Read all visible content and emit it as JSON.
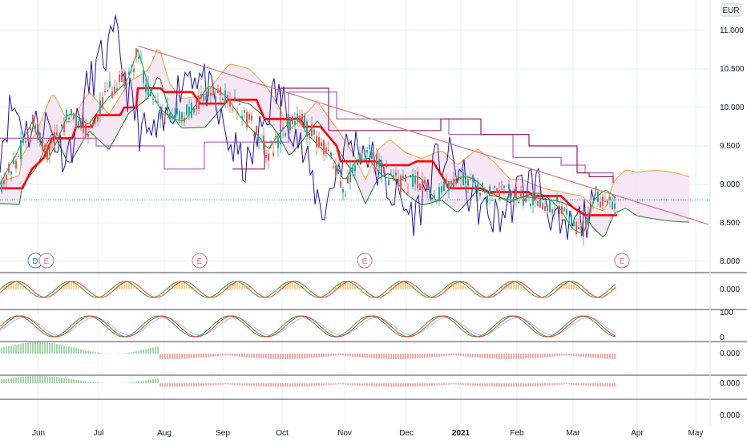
{
  "chart_data": {
    "type": "candlestick",
    "currency_label": "EUR",
    "colors": {
      "candle_up": "#26a69a",
      "candle_down": "#ef5350",
      "kijun": "#ff0000",
      "tenkan": "#1d0fb0",
      "chikou": "#17a317",
      "span_a": "#f7a023",
      "span_b": "#1f7a1f",
      "trendline": "#cf7777",
      "cloud_fill": "#f3e3f5",
      "purple_level": "#b060c0",
      "maroon_level": "#9c1c5c",
      "earnings_badge": "#e06a7f",
      "earnings_badge_blue": "#3d7bd9"
    },
    "price_axis": {
      "ticks": [
        "11.000",
        "10.500",
        "10.000",
        "9.500",
        "9.000",
        "8.500",
        "8.000"
      ],
      "values": [
        11.0,
        10.5,
        10.0,
        9.5,
        9.0,
        8.5,
        8.0
      ],
      "ylim": [
        7.95,
        11.2
      ],
      "last_price_line": 8.8
    },
    "time_axis": {
      "labels": [
        "Jun",
        "Jul",
        "Aug",
        "Sep",
        "Oct",
        "Nov",
        "Dec",
        "2021",
        "Feb",
        "Mar",
        "Apr",
        "May"
      ],
      "bold_labels": [
        "2021"
      ]
    },
    "trendline": {
      "start": {
        "date": "Jul",
        "price": 10.8
      },
      "end": {
        "date": "May",
        "price": 8.5
      }
    },
    "earnings_markers": [
      "D",
      "E",
      "E",
      "E",
      "E"
    ],
    "panes": [
      {
        "type": "oscillator",
        "tick_label": "0.000",
        "series": [
          "orange-histogram",
          "green-line",
          "red-line"
        ]
      },
      {
        "type": "stochastic",
        "tick_labels": [
          "100",
          "0"
        ],
        "series": [
          "orange-line",
          "green-line",
          "red-line",
          "light-blue-line"
        ]
      },
      {
        "type": "histogram",
        "tick_label": "0.000",
        "colors": [
          "#4caf50",
          "#ef5350"
        ]
      },
      {
        "type": "histogram",
        "tick_label": "0.000",
        "colors": [
          "#4caf50",
          "#ef5350"
        ]
      },
      {
        "type": "empty",
        "tick_label": "0.000"
      }
    ]
  }
}
